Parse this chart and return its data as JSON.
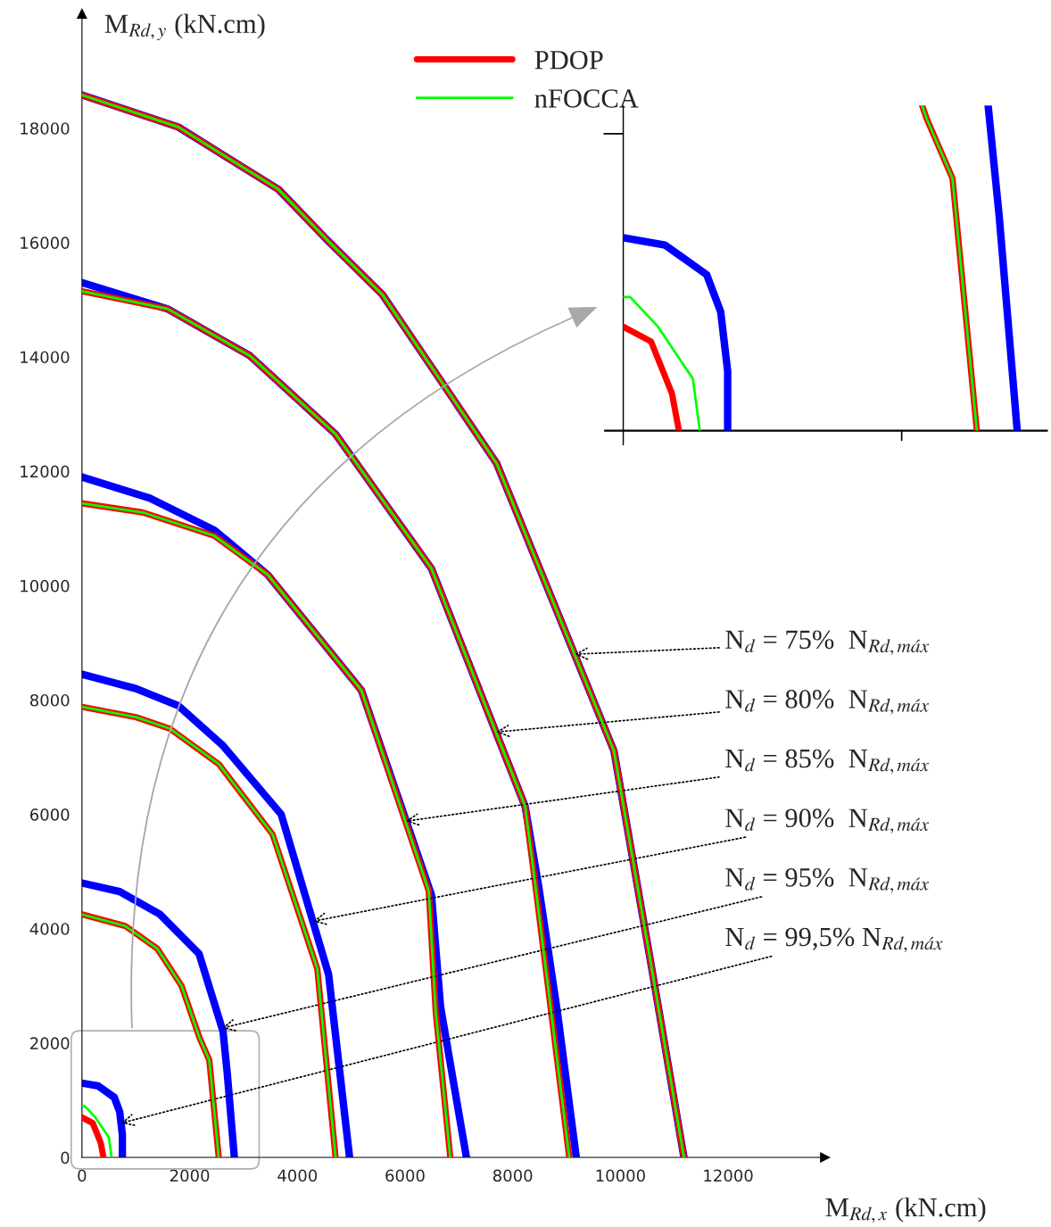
{
  "chart_data": {
    "type": "line",
    "xlabel": "M$_{Rd,x}$ (kN.cm)",
    "ylabel": "M$_{Rd,y}$ (kN.cm)",
    "xlim": [
      0,
      13800
    ],
    "ylim": [
      0,
      20000
    ],
    "xticks": [
      0,
      2000,
      4000,
      6000,
      8000,
      10000,
      12000
    ],
    "yticks": [
      0,
      2000,
      4000,
      6000,
      8000,
      10000,
      12000,
      14000,
      16000,
      18000
    ],
    "grid": false,
    "legend": "top",
    "marker": "none",
    "line_style": "solid",
    "series": [
      {
        "color": "#0000ff",
        "x": [
          0,
          1790,
          3650,
          4580,
          5580,
          6840,
          7700,
          9880,
          10570,
          11180
        ],
        "values": [
          18580,
          18020,
          16930,
          16020,
          15090,
          13340,
          12140,
          7110,
          3370,
          0
        ]
      },
      {
        "name": "PDOP",
        "color": "#ff0000",
        "x": [
          0,
          1790,
          3650,
          4580,
          5580,
          6840,
          7700,
          9880,
          10570,
          11180
        ],
        "values": [
          18580,
          18020,
          16930,
          16020,
          15090,
          13340,
          12140,
          7110,
          3370,
          0
        ]
      },
      {
        "name": "nFOCCA",
        "color": "#00ff00",
        "x": [
          0,
          1790,
          3650,
          4580,
          5580,
          6840,
          7700,
          9880,
          10570,
          11180
        ],
        "values": [
          18580,
          18020,
          16930,
          16020,
          15090,
          13340,
          12140,
          7110,
          3370,
          0
        ]
      },
      {
        "color": "#0000ff",
        "x": [
          0,
          1590,
          3120,
          4710,
          6490,
          8230,
          8480,
          8830,
          9180
        ],
        "values": [
          15300,
          14840,
          14020,
          12650,
          10300,
          6140,
          4750,
          2540,
          0
        ]
      },
      {
        "color": "#ff0000",
        "x": [
          0,
          1590,
          3120,
          4710,
          6490,
          8230,
          8400,
          8660,
          9050
        ],
        "values": [
          15150,
          14840,
          14020,
          12650,
          10300,
          6140,
          4910,
          2950,
          0
        ]
      },
      {
        "color": "#00ff00",
        "x": [
          0,
          1590,
          3120,
          4710,
          6490,
          8230,
          8400,
          8660,
          9050
        ],
        "values": [
          15150,
          14840,
          14020,
          12650,
          10300,
          6140,
          4910,
          2950,
          0
        ]
      },
      {
        "color": "#0000ff",
        "x": [
          0,
          1260,
          2460,
          3450,
          5190,
          6490,
          6660,
          7140
        ],
        "values": [
          11900,
          11530,
          10970,
          10190,
          8170,
          4590,
          2630,
          0
        ]
      },
      {
        "color": "#ff0000",
        "x": [
          0,
          1130,
          2460,
          3450,
          5190,
          6440,
          6570,
          6840
        ],
        "values": [
          11440,
          11280,
          10870,
          10190,
          8170,
          4660,
          2540,
          0
        ]
      },
      {
        "color": "#00ff00",
        "x": [
          0,
          1130,
          2460,
          3450,
          5190,
          6440,
          6570,
          6840
        ],
        "values": [
          11440,
          11280,
          10870,
          10190,
          8170,
          4660,
          2540,
          0
        ]
      },
      {
        "color": "#0000ff",
        "x": [
          0,
          1000,
          1790,
          2620,
          3700,
          4580,
          4970
        ],
        "values": [
          8450,
          8200,
          7900,
          7200,
          6000,
          3200,
          0
        ]
      },
      {
        "color": "#ff0000",
        "x": [
          0,
          1000,
          1630,
          2540,
          3540,
          4370,
          4710
        ],
        "values": [
          7880,
          7700,
          7500,
          6880,
          5650,
          3300,
          0
        ]
      },
      {
        "color": "#00ff00",
        "x": [
          0,
          1000,
          1630,
          2540,
          3540,
          4370,
          4710
        ],
        "values": [
          7880,
          7700,
          7500,
          6880,
          5650,
          3300,
          0
        ]
      },
      {
        "color": "#0000ff",
        "x": [
          0,
          700,
          1450,
          2175,
          2620,
          2700,
          2830
        ],
        "values": [
          4800,
          4650,
          4250,
          3560,
          2200,
          1450,
          0
        ]
      },
      {
        "color": "#ff0000",
        "x": [
          0,
          800,
          1400,
          1850,
          2180,
          2365,
          2540
        ],
        "values": [
          4250,
          4050,
          3650,
          3000,
          2100,
          1700,
          0
        ]
      },
      {
        "color": "#00ff00",
        "x": [
          0,
          800,
          1400,
          1850,
          2180,
          2365,
          2540
        ],
        "values": [
          4250,
          4050,
          3650,
          3000,
          2100,
          1700,
          0
        ]
      },
      {
        "color": "#0000ff",
        "x": [
          0,
          300,
          600,
          700,
          750,
          750
        ],
        "values": [
          1300,
          1250,
          1050,
          800,
          400,
          0
        ]
      },
      {
        "color": "#ff0000",
        "x": [
          0,
          200,
          350,
          400
        ],
        "values": [
          700,
          600,
          250,
          0
        ]
      },
      {
        "color": "#00ff00",
        "x": [
          0,
          50,
          250,
          500,
          550
        ],
        "values": [
          900,
          900,
          700,
          350,
          0
        ]
      }
    ],
    "annotations": [
      {
        "text": "N$_{d}$ = 75%  N$_{Rd,máx}$",
        "x": 9150,
        "y": 8800
      },
      {
        "text": "N$_{d}$ = 80%  N$_{Rd,máx}$",
        "x": 7690,
        "y": 7440
      },
      {
        "text": "N$_{d}$ = 85%  N$_{Rd,máx}$",
        "x": 6010,
        "y": 5880
      },
      {
        "text": "N$_{d}$ = 90%  N$_{Rd,máx}$",
        "x": 4290,
        "y": 4130
      },
      {
        "text": "N$_{d}$ = 95%  N$_{Rd,máx}$",
        "x": 2600,
        "y": 2260
      },
      {
        "text": "N$_{d}$ = 99,5% N$_{Rd,máx}$",
        "x": 725,
        "y": 600
      }
    ]
  }
}
